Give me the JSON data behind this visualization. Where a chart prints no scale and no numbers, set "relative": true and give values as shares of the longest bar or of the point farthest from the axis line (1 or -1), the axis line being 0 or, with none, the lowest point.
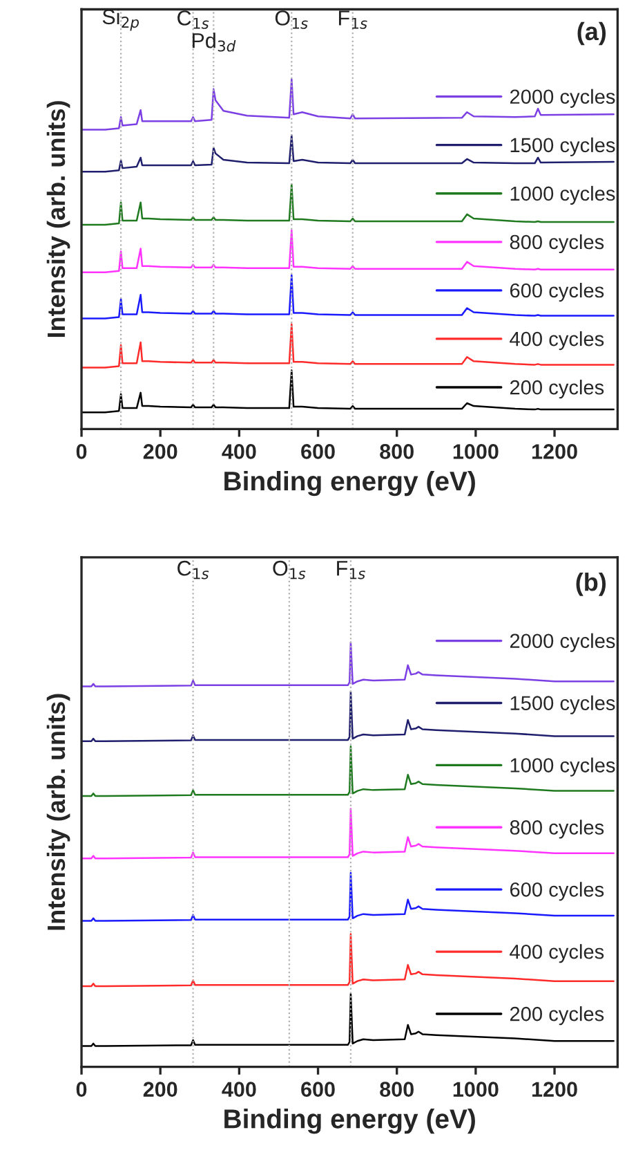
{
  "chart_data": [
    {
      "type": "line",
      "relative": true,
      "xlabel": "Binding energy (eV)",
      "ylabel": "Intensity (arb. units)",
      "xlim": [
        0,
        1360
      ],
      "xticks": [
        0,
        200,
        400,
        600,
        800,
        1000,
        1200
      ],
      "tick_labels": "x",
      "legend": "right",
      "grid": false,
      "annotations": [
        "(a)"
      ],
      "x": [
        0,
        60,
        95,
        100,
        104,
        140,
        150,
        154,
        170,
        200,
        278,
        283,
        288,
        330,
        335,
        340,
        360,
        420,
        527,
        533,
        538,
        560,
        600,
        682,
        688,
        694,
        965,
        978,
        995,
        1100,
        1150,
        1158,
        1165,
        1350
      ],
      "ref_lines": [
        {
          "axis": "x",
          "value": 100,
          "label": "Si$_{2p}$",
          "color": "#b0b0b0",
          "line_style": "dotted"
        },
        {
          "axis": "x",
          "value": 283,
          "label": "C$_{1s}$",
          "color": "#b0b0b0",
          "line_style": "dotted"
        },
        {
          "axis": "x",
          "value": 335,
          "label": "Pd$_{3d}$",
          "color": "#b0b0b0",
          "line_style": "dotted"
        },
        {
          "axis": "x",
          "value": 533,
          "label": "O$_{1s}$",
          "color": "#b0b0b0",
          "line_style": "dotted"
        },
        {
          "axis": "x",
          "value": 688,
          "label": "F$_{1s}$",
          "color": "#b0b0b0",
          "line_style": "dotted"
        }
      ],
      "series": [
        {
          "name": "2000 cycles",
          "color": "#7b3fe4",
          "values": [
            0.856,
            0.856,
            0.86,
            0.892,
            0.868,
            0.872,
            0.912,
            0.88,
            0.88,
            0.88,
            0.88,
            0.892,
            0.88,
            0.884,
            0.972,
            0.94,
            0.91,
            0.896,
            0.89,
            1.0,
            0.9,
            0.906,
            0.894,
            0.888,
            0.9,
            0.888,
            0.89,
            0.906,
            0.894,
            0.892,
            0.894,
            0.916,
            0.898,
            0.9
          ]
        },
        {
          "name": "1500 cycles",
          "color": "#1f1f6e",
          "values": [
            0.736,
            0.736,
            0.74,
            0.768,
            0.746,
            0.75,
            0.776,
            0.754,
            0.754,
            0.754,
            0.754,
            0.766,
            0.754,
            0.756,
            0.804,
            0.788,
            0.77,
            0.762,
            0.76,
            0.84,
            0.766,
            0.77,
            0.762,
            0.76,
            0.77,
            0.76,
            0.76,
            0.772,
            0.762,
            0.76,
            0.76,
            0.776,
            0.762,
            0.764
          ]
        },
        {
          "name": "1000 cycles",
          "color": "#1f7a1f",
          "values": [
            0.584,
            0.584,
            0.588,
            0.648,
            0.596,
            0.596,
            0.648,
            0.602,
            0.602,
            0.6,
            0.598,
            0.606,
            0.598,
            0.598,
            0.606,
            0.598,
            0.598,
            0.596,
            0.596,
            0.7,
            0.6,
            0.6,
            0.596,
            0.594,
            0.602,
            0.594,
            0.594,
            0.614,
            0.602,
            0.594,
            0.592,
            0.594,
            0.592,
            0.592
          ]
        },
        {
          "name": "800 cycles",
          "color": "#ff33ff",
          "values": [
            0.448,
            0.448,
            0.452,
            0.508,
            0.46,
            0.46,
            0.516,
            0.466,
            0.466,
            0.464,
            0.462,
            0.47,
            0.462,
            0.462,
            0.47,
            0.462,
            0.462,
            0.46,
            0.46,
            0.568,
            0.464,
            0.464,
            0.46,
            0.458,
            0.466,
            0.458,
            0.458,
            0.478,
            0.466,
            0.458,
            0.456,
            0.458,
            0.456,
            0.456
          ]
        },
        {
          "name": "600 cycles",
          "color": "#1a1aff",
          "values": [
            0.316,
            0.316,
            0.32,
            0.372,
            0.328,
            0.328,
            0.384,
            0.334,
            0.334,
            0.332,
            0.33,
            0.338,
            0.33,
            0.33,
            0.338,
            0.33,
            0.33,
            0.328,
            0.328,
            0.44,
            0.332,
            0.332,
            0.328,
            0.326,
            0.334,
            0.326,
            0.326,
            0.346,
            0.334,
            0.326,
            0.324,
            0.326,
            0.324,
            0.324
          ]
        },
        {
          "name": "400 cycles",
          "color": "#ff2a2a",
          "values": [
            0.176,
            0.176,
            0.18,
            0.24,
            0.188,
            0.188,
            0.248,
            0.194,
            0.194,
            0.192,
            0.19,
            0.198,
            0.19,
            0.19,
            0.198,
            0.19,
            0.19,
            0.188,
            0.188,
            0.3,
            0.192,
            0.192,
            0.188,
            0.186,
            0.194,
            0.186,
            0.186,
            0.206,
            0.194,
            0.186,
            0.184,
            0.186,
            0.184,
            0.184
          ]
        },
        {
          "name": "200 cycles",
          "color": "#000000",
          "values": [
            0.048,
            0.048,
            0.052,
            0.1,
            0.06,
            0.06,
            0.104,
            0.066,
            0.066,
            0.064,
            0.062,
            0.07,
            0.062,
            0.062,
            0.07,
            0.062,
            0.062,
            0.06,
            0.06,
            0.168,
            0.064,
            0.064,
            0.06,
            0.058,
            0.066,
            0.058,
            0.058,
            0.074,
            0.066,
            0.058,
            0.056,
            0.058,
            0.056,
            0.056
          ]
        }
      ]
    },
    {
      "type": "line",
      "relative": true,
      "xlabel": "Binding energy (eV)",
      "ylabel": "Intensity (arb. units)",
      "xlim": [
        0,
        1360
      ],
      "xticks": [
        0,
        200,
        400,
        600,
        800,
        1000,
        1200
      ],
      "tick_labels": "x",
      "legend": "right",
      "grid": false,
      "annotations": [
        "(b)"
      ],
      "x": [
        0,
        25,
        30,
        35,
        60,
        278,
        283,
        288,
        527,
        676,
        680,
        683,
        688,
        700,
        715,
        740,
        820,
        828,
        836,
        848,
        855,
        865,
        900,
        1100,
        1200,
        1350
      ],
      "ref_lines": [
        {
          "axis": "x",
          "value": 283,
          "label": "C$_{1s}$",
          "color": "#b0b0b0",
          "line_style": "dotted"
        },
        {
          "axis": "x",
          "value": 527,
          "label": "O$_{1s}$",
          "color": "#b0b0b0",
          "line_style": "dotted"
        },
        {
          "axis": "x",
          "value": 683,
          "label": "F$_{1s}$",
          "color": "#b0b0b0",
          "line_style": "dotted"
        }
      ],
      "series": [
        {
          "name": "2000 cycles",
          "color": "#7b3fe4",
          "values": [
            0.896,
            0.896,
            0.902,
            0.896,
            0.896,
            0.898,
            0.91,
            0.899,
            0.899,
            0.899,
            0.906,
            1.0,
            0.902,
            0.908,
            0.912,
            0.91,
            0.912,
            0.946,
            0.924,
            0.926,
            0.93,
            0.924,
            0.922,
            0.914,
            0.908,
            0.908
          ]
        },
        {
          "name": "1500 cycles",
          "color": "#1f1f6e",
          "values": [
            0.767,
            0.767,
            0.773,
            0.767,
            0.767,
            0.769,
            0.781,
            0.77,
            0.77,
            0.77,
            0.777,
            0.884,
            0.773,
            0.779,
            0.783,
            0.781,
            0.783,
            0.817,
            0.795,
            0.797,
            0.801,
            0.795,
            0.793,
            0.785,
            0.779,
            0.779
          ]
        },
        {
          "name": "1000 cycles",
          "color": "#1f7a1f",
          "values": [
            0.638,
            0.638,
            0.644,
            0.638,
            0.638,
            0.64,
            0.652,
            0.641,
            0.641,
            0.641,
            0.648,
            0.755,
            0.644,
            0.65,
            0.654,
            0.652,
            0.654,
            0.688,
            0.666,
            0.668,
            0.672,
            0.666,
            0.664,
            0.656,
            0.65,
            0.65
          ]
        },
        {
          "name": "800 cycles",
          "color": "#ff33ff",
          "values": [
            0.491,
            0.491,
            0.497,
            0.491,
            0.491,
            0.493,
            0.505,
            0.494,
            0.494,
            0.494,
            0.501,
            0.608,
            0.497,
            0.503,
            0.507,
            0.505,
            0.507,
            0.541,
            0.519,
            0.521,
            0.525,
            0.519,
            0.517,
            0.509,
            0.503,
            0.503
          ]
        },
        {
          "name": "600 cycles",
          "color": "#1a1aff",
          "values": [
            0.344,
            0.344,
            0.35,
            0.344,
            0.344,
            0.346,
            0.358,
            0.347,
            0.347,
            0.347,
            0.354,
            0.457,
            0.35,
            0.356,
            0.36,
            0.358,
            0.36,
            0.394,
            0.372,
            0.374,
            0.378,
            0.372,
            0.37,
            0.362,
            0.356,
            0.356
          ]
        },
        {
          "name": "400 cycles",
          "color": "#ff2a2a",
          "values": [
            0.19,
            0.19,
            0.196,
            0.19,
            0.19,
            0.192,
            0.204,
            0.193,
            0.193,
            0.193,
            0.2,
            0.313,
            0.196,
            0.202,
            0.206,
            0.204,
            0.206,
            0.24,
            0.218,
            0.22,
            0.224,
            0.218,
            0.216,
            0.208,
            0.202,
            0.202
          ]
        },
        {
          "name": "200 cycles",
          "color": "#000000",
          "values": [
            0.049,
            0.049,
            0.055,
            0.049,
            0.049,
            0.051,
            0.063,
            0.052,
            0.052,
            0.052,
            0.059,
            0.172,
            0.055,
            0.061,
            0.065,
            0.063,
            0.065,
            0.099,
            0.077,
            0.079,
            0.083,
            0.077,
            0.075,
            0.067,
            0.061,
            0.061
          ]
        }
      ]
    }
  ]
}
